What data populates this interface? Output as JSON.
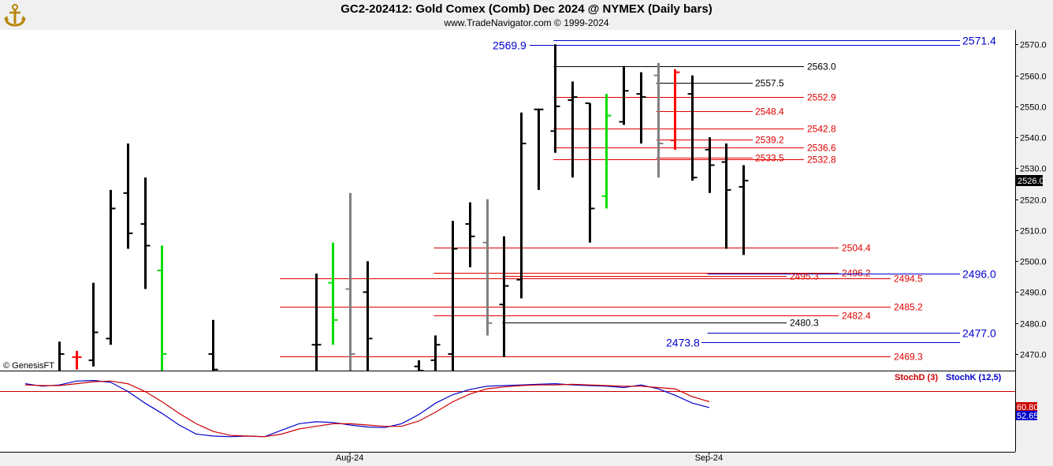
{
  "header": {
    "title": "GC2-202412:  Gold Comex (Comb) Dec 2024 @ NYMEX  (Daily bars)",
    "copyright": "www.TradeNavigator.com © 1999-2024",
    "watermark": "© GenesisFT"
  },
  "colors": {
    "background": "#ffffff",
    "panel": "#f0f0f0",
    "bar": "#000000",
    "bar_gray": "#808080",
    "bar_red": "#ff0000",
    "bar_green": "#00dd00",
    "level_red": "#e00000",
    "level_blue": "#0000cc",
    "level_black": "#000000",
    "stoch_k": "#0000cc",
    "stoch_d": "#cc0000"
  },
  "chart_data": [
    {
      "type": "ohlc",
      "title": "GC2-202412:  Gold Comex (Comb) Dec 2024 @ NYMEX  (Daily bars)",
      "ylim": [
        2466,
        2574
      ],
      "y_ticks": [
        2470.0,
        2480.0,
        2490.0,
        2500.0,
        2510.0,
        2520.0,
        2530.0,
        2540.0,
        2550.0,
        2560.0,
        2570.0
      ],
      "last_price": "2526.0",
      "x_labels": [
        {
          "label": "Aug-24",
          "bar": 17
        },
        {
          "label": "Sep-24",
          "bar": 38
        }
      ],
      "bars": [
        {
          "i": 0,
          "o": null,
          "h": 2474,
          "l": 2463,
          "c": 2470,
          "color": "black"
        },
        {
          "i": 1,
          "o": 2469,
          "h": 2471,
          "l": 2465,
          "c": 2469,
          "color": "red"
        },
        {
          "i": 2,
          "o": 2468,
          "h": 2493,
          "l": 2466,
          "c": 2477,
          "color": "black"
        },
        {
          "i": 3,
          "o": 2475,
          "h": 2523,
          "l": 2473,
          "c": 2517,
          "color": "black"
        },
        {
          "i": 4,
          "o": 2522,
          "h": 2538,
          "l": 2504,
          "c": 2509,
          "color": "black"
        },
        {
          "i": 5,
          "o": 2512,
          "h": 2527,
          "l": 2491,
          "c": 2505,
          "color": "black"
        },
        {
          "i": 6,
          "o": 2497,
          "h": 2505,
          "l": 2460,
          "c": 2470,
          "color": "green"
        },
        {
          "i": 9,
          "o": 2470,
          "h": 2481,
          "l": 2455,
          "c": 2465,
          "color": "black"
        },
        {
          "i": 15,
          "o": 2473,
          "h": 2496,
          "l": 2462,
          "c": 2473,
          "color": "black"
        },
        {
          "i": 16,
          "o": 2493,
          "h": 2506,
          "l": 2473,
          "c": 2481,
          "color": "green"
        },
        {
          "i": 17,
          "o": 2491,
          "h": 2522,
          "l": 2461,
          "c": 2470,
          "color": "gray"
        },
        {
          "i": 18,
          "o": 2490,
          "h": 2500,
          "l": 2462,
          "c": 2475,
          "color": "black"
        },
        {
          "i": 21,
          "o": 2466,
          "h": 2468,
          "l": 2460,
          "c": 2462,
          "color": "black"
        },
        {
          "i": 22,
          "o": 2468,
          "h": 2476,
          "l": 2461,
          "c": 2473,
          "color": "black"
        },
        {
          "i": 23,
          "o": 2470,
          "h": 2513,
          "l": 2462,
          "c": 2504,
          "color": "black"
        },
        {
          "i": 24,
          "o": 2512,
          "h": 2519,
          "l": 2498,
          "c": 2508,
          "color": "black"
        },
        {
          "i": 25,
          "o": 2506,
          "h": 2520,
          "l": 2476,
          "c": 2480,
          "color": "gray"
        },
        {
          "i": 26,
          "o": 2486,
          "h": 2508,
          "l": 2469,
          "c": 2492,
          "color": "black"
        },
        {
          "i": 27,
          "o": 2494,
          "h": 2548,
          "l": 2488,
          "c": 2538,
          "color": "black"
        },
        {
          "i": 28,
          "o": 2549,
          "h": 2549,
          "l": 2523,
          "c": 2549,
          "color": "black"
        },
        {
          "i": 29,
          "o": 2542,
          "h": 2570,
          "l": 2535,
          "c": 2550,
          "color": "black"
        },
        {
          "i": 30,
          "o": 2552,
          "h": 2558,
          "l": 2527,
          "c": 2553,
          "color": "black"
        },
        {
          "i": 31,
          "o": 2551,
          "h": 2551,
          "l": 2506,
          "c": 2517,
          "color": "black"
        },
        {
          "i": 32,
          "o": 2521,
          "h": 2554,
          "l": 2517,
          "c": 2547,
          "color": "green"
        },
        {
          "i": 33,
          "o": 2545,
          "h": 2563,
          "l": 2544,
          "c": 2555,
          "color": "black"
        },
        {
          "i": 34,
          "o": 2554,
          "h": 2561,
          "l": 2538,
          "c": 2553,
          "color": "black"
        },
        {
          "i": 35,
          "o": 2560,
          "h": 2564,
          "l": 2527,
          "c": 2538,
          "color": "gray"
        },
        {
          "i": 36,
          "o": 2539,
          "h": 2562,
          "l": 2536,
          "c": 2561,
          "color": "red"
        },
        {
          "i": 37,
          "o": 2554,
          "h": 2560,
          "l": 2526,
          "c": 2527,
          "color": "black"
        },
        {
          "i": 38,
          "o": 2536,
          "h": 2540,
          "l": 2522,
          "c": 2531,
          "color": "black"
        },
        {
          "i": 39,
          "o": 2532,
          "h": 2538,
          "l": 2504,
          "c": 2523,
          "color": "black"
        },
        {
          "i": 40,
          "o": 2524,
          "h": 2531,
          "l": 2502,
          "c": 2526,
          "color": "black"
        }
      ],
      "levels": [
        {
          "value": 2571.4,
          "label": "2571.4",
          "color": "blue",
          "from_bar": 29,
          "label_at": "axis"
        },
        {
          "value": 2569.9,
          "label": "2569.9",
          "color": "blue",
          "from_bar": 29,
          "label_at": "left"
        },
        {
          "value": 2563.0,
          "label": "2563.0",
          "color": "black",
          "from_bar": 29,
          "label_at": "mid2"
        },
        {
          "value": 2557.5,
          "label": "2557.5",
          "color": "black",
          "from_bar": 35,
          "label_at": "mid1"
        },
        {
          "value": 2552.9,
          "label": "2552.9",
          "color": "red",
          "from_bar": 29,
          "label_at": "mid2"
        },
        {
          "value": 2548.4,
          "label": "2548.4",
          "color": "red",
          "from_bar": 35,
          "label_at": "mid1"
        },
        {
          "value": 2542.8,
          "label": "2542.8",
          "color": "red",
          "from_bar": 29,
          "label_at": "mid2"
        },
        {
          "value": 2539.2,
          "label": "2539.2",
          "color": "red",
          "from_bar": 35,
          "label_at": "mid1"
        },
        {
          "value": 2536.6,
          "label": "2536.6",
          "color": "red",
          "from_bar": 29,
          "label_at": "mid2"
        },
        {
          "value": 2533.5,
          "label": "2533.5",
          "color": "red",
          "from_bar": 35,
          "label_at": "mid1"
        },
        {
          "value": 2532.8,
          "label": "2532.8",
          "color": "red",
          "from_bar": 29,
          "label_at": "mid2"
        },
        {
          "value": 2504.4,
          "label": "2504.4",
          "color": "red",
          "from_bar": 22,
          "label_at": "mid3"
        },
        {
          "value": 2496.2,
          "label": "2496.2",
          "color": "red",
          "from_bar": 22,
          "label_at": "mid3"
        },
        {
          "value": 2496.0,
          "label": "2496.0",
          "color": "blue",
          "from_bar": 38,
          "label_at": "axis"
        },
        {
          "value": 2495.3,
          "label": "2495.3",
          "color": "red",
          "from_bar": 26,
          "label_at": "mid4"
        },
        {
          "value": 2494.5,
          "label": "2494.5",
          "color": "red",
          "from_bar": 13,
          "label_at": "mid5"
        },
        {
          "value": 2485.2,
          "label": "2485.2",
          "color": "red",
          "from_bar": 13,
          "label_at": "mid5"
        },
        {
          "value": 2482.4,
          "label": "2482.4",
          "color": "red",
          "from_bar": 22,
          "label_at": "mid3"
        },
        {
          "value": 2480.3,
          "label": "2480.3",
          "color": "black",
          "from_bar": 26,
          "label_at": "mid4"
        },
        {
          "value": 2477.0,
          "label": "2477.0",
          "color": "blue",
          "from_bar": 38,
          "label_at": "axis"
        },
        {
          "value": 2473.8,
          "label": "2473.8",
          "color": "blue",
          "from_bar": 38,
          "label_at": "left"
        },
        {
          "value": 2469.3,
          "label": "2469.3",
          "color": "red",
          "from_bar": 13,
          "label_at": "mid5"
        }
      ]
    },
    {
      "type": "line",
      "title": "",
      "legend": [
        {
          "name": "StochD (3)",
          "color": "red"
        },
        {
          "name": "StochK (12,5)",
          "color": "blue"
        }
      ],
      "ylim": [
        0,
        100
      ],
      "reference_line": 80,
      "last_values": {
        "d": "60.80",
        "k": "52.65"
      },
      "series": [
        {
          "name": "StochK (12,5)",
          "values": [
            92,
            88,
            90,
            96,
            97,
            94,
            80,
            62,
            46,
            28,
            14,
            11,
            10,
            11,
            10,
            20,
            30,
            33,
            32,
            28,
            25,
            24,
            30,
            44,
            62,
            75,
            83,
            88,
            89,
            90,
            91,
            92,
            90,
            89,
            88,
            86,
            90,
            84,
            74,
            62,
            55
          ]
        },
        {
          "name": "StochD (3)",
          "values": [
            90,
            89,
            89,
            92,
            95,
            96,
            92,
            80,
            64,
            46,
            30,
            18,
            12,
            11,
            10,
            14,
            22,
            26,
            30,
            30,
            28,
            26,
            26,
            34,
            48,
            64,
            76,
            84,
            87,
            89,
            90,
            90,
            91,
            90,
            89,
            88,
            88,
            86,
            84,
            72,
            64
          ]
        }
      ]
    }
  ]
}
